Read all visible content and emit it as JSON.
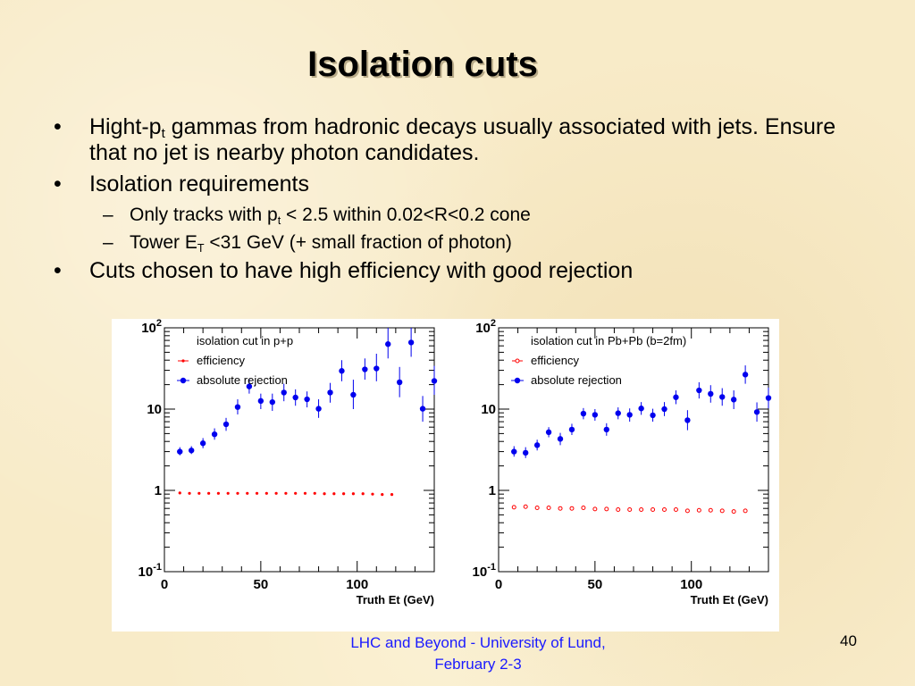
{
  "slide": {
    "title": "Isolation cuts",
    "bullet1": {
      "pre": "Hight-p",
      "sub": "t",
      "post": " gammas from hadronic decays usually associated with jets. Ensure that no jet is nearby photon candidates."
    },
    "bullet2": "Isolation requirements",
    "sub1": {
      "pre": "Only tracks with p",
      "sub": "t",
      "post": " < 2.5 within 0.02<R<0.2 cone"
    },
    "sub2": {
      "pre": "Tower E",
      "sub": "T",
      "post": " <31 GeV (+ small fraction of photon)"
    },
    "bullet3": "Cuts chosen to have high efficiency with good rejection",
    "bullet_char": "•",
    "dash_char": "–",
    "footer_line1": "LHC and Beyond - University of Lund,",
    "footer_line2": "February 2-3",
    "page_number": "40"
  },
  "chart_data": [
    {
      "type": "scatter",
      "title": "isolation cut in p+p",
      "xlabel": "Truth Et (GeV)",
      "xlim": [
        0,
        140
      ],
      "ylim": [
        0.1,
        100
      ],
      "yscale": "log",
      "xticks": [
        "0",
        "50",
        "100"
      ],
      "yticks": [
        "10^-1",
        "1",
        "10",
        "10^2"
      ],
      "legend": [
        "efficiency",
        "absolute rejection"
      ],
      "series": [
        {
          "name": "efficiency",
          "color": "#ff0000",
          "marker": "filled-small",
          "x": [
            8,
            13,
            18,
            23,
            28,
            33,
            38,
            43,
            48,
            53,
            58,
            63,
            68,
            73,
            78,
            83,
            88,
            93,
            98,
            103,
            108,
            113,
            118
          ],
          "y": [
            0.93,
            0.92,
            0.92,
            0.92,
            0.92,
            0.92,
            0.92,
            0.92,
            0.92,
            0.92,
            0.92,
            0.92,
            0.92,
            0.92,
            0.92,
            0.91,
            0.91,
            0.91,
            0.91,
            0.91,
            0.9,
            0.89,
            0.89
          ]
        },
        {
          "name": "absolute rejection",
          "color": "#0000ee",
          "marker": "filled-circle",
          "x": [
            8,
            14,
            20,
            26,
            32,
            38,
            44,
            50,
            56,
            62,
            68,
            74,
            80,
            86,
            92,
            98,
            104,
            110,
            116,
            122,
            128,
            134,
            140
          ],
          "y": [
            3,
            3.1,
            3.8,
            4.9,
            6.5,
            10.6,
            19,
            12.6,
            12.2,
            16,
            13.9,
            13.2,
            10.1,
            16,
            29.5,
            15,
            30.8,
            31.6,
            63,
            21.4,
            66,
            10.1,
            22.2
          ],
          "yerr_lo": [
            2.7,
            2.8,
            3.3,
            4.2,
            5.4,
            8.6,
            15.5,
            10,
            9.5,
            12.5,
            11,
            10.5,
            7.8,
            12,
            22,
            10,
            23,
            22,
            42,
            14,
            44,
            7,
            15
          ],
          "yerr_hi": [
            3.4,
            3.5,
            4.4,
            5.8,
            7.8,
            13.2,
            23.5,
            15.5,
            15.5,
            20.5,
            17.5,
            16.5,
            13.2,
            21,
            40,
            23,
            42,
            48,
            100,
            33,
            100,
            14.5,
            34
          ]
        }
      ]
    },
    {
      "type": "scatter",
      "title": "isolation cut in Pb+Pb (b=2fm)",
      "xlabel": "Truth Et (GeV)",
      "xlim": [
        0,
        140
      ],
      "ylim": [
        0.1,
        100
      ],
      "yscale": "log",
      "xticks": [
        "0",
        "50",
        "100"
      ],
      "yticks": [
        "10^-1",
        "1",
        "10",
        "10^2"
      ],
      "legend": [
        "efficiency",
        "absolute rejection"
      ],
      "series": [
        {
          "name": "efficiency",
          "color": "#ff0000",
          "marker": "open-circle",
          "x": [
            8,
            14,
            20,
            26,
            32,
            38,
            44,
            50,
            56,
            62,
            68,
            74,
            80,
            86,
            92,
            98,
            104,
            110,
            116,
            122,
            128
          ],
          "y": [
            0.62,
            0.63,
            0.61,
            0.61,
            0.6,
            0.6,
            0.61,
            0.59,
            0.59,
            0.58,
            0.58,
            0.58,
            0.58,
            0.58,
            0.58,
            0.56,
            0.57,
            0.57,
            0.56,
            0.55,
            0.56
          ]
        },
        {
          "name": "absolute rejection",
          "color": "#0000ee",
          "marker": "filled-circle",
          "x": [
            8,
            14,
            20,
            26,
            32,
            38,
            44,
            50,
            56,
            62,
            68,
            74,
            80,
            86,
            92,
            98,
            104,
            110,
            116,
            122,
            128,
            134,
            140
          ],
          "y": [
            3,
            2.9,
            3.6,
            5.2,
            4.3,
            5.6,
            8.8,
            8.5,
            5.6,
            8.9,
            8.5,
            10.2,
            8.4,
            10,
            14,
            7.3,
            17,
            15.4,
            14.1,
            13.1,
            26.6,
            9.2,
            13.7
          ],
          "yerr_lo": [
            2.6,
            2.5,
            3.1,
            4.5,
            3.6,
            4.8,
            7.5,
            7.2,
            4.7,
            7.5,
            7,
            8.5,
            7,
            8.2,
            11.5,
            5.5,
            13.5,
            12,
            11,
            10,
            20.5,
            7,
            10.2
          ],
          "yerr_hi": [
            3.5,
            3.4,
            4.2,
            6,
            5.1,
            6.6,
            10.3,
            10,
            6.7,
            10.5,
            10.2,
            12.2,
            10.1,
            12.2,
            17,
            9.7,
            21.4,
            19.7,
            18.1,
            17,
            34.5,
            12.1,
            18.4
          ]
        }
      ]
    }
  ]
}
